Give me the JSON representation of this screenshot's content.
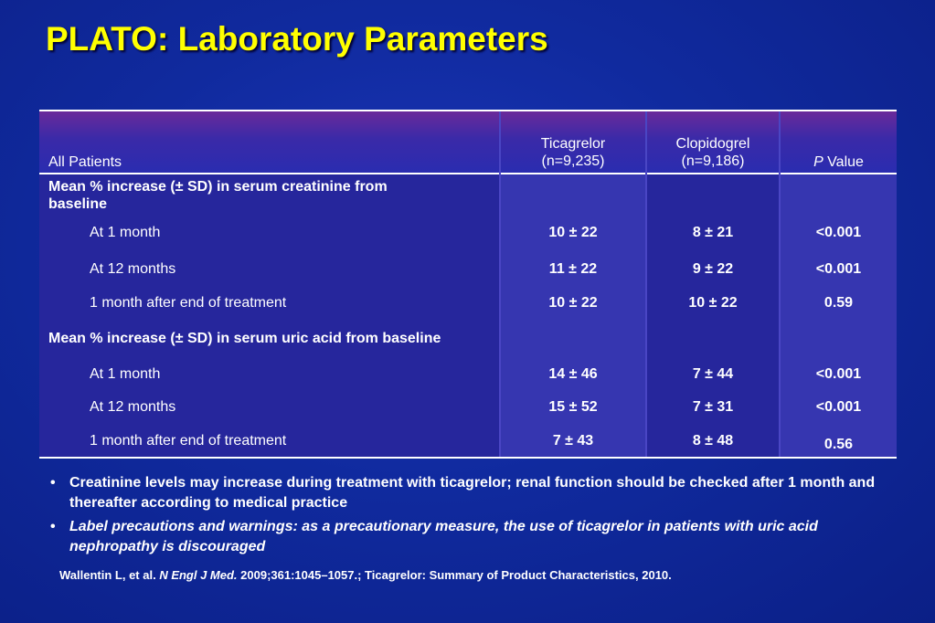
{
  "title": "PLATO: Laboratory Parameters",
  "table": {
    "header": {
      "col0": "All Patients",
      "col1_line1": "Ticagrelor",
      "col1_line2": "(n=9,235)",
      "col2_line1": "Clopidogrel",
      "col2_line2": "(n=9,186)",
      "col3_p": "P",
      "col3_rest": " Value"
    },
    "section1": {
      "label_line1": "Mean % increase (± SD) in serum creatinine from",
      "label_line2": "baseline",
      "rows": [
        {
          "label": "At 1 month",
          "ticagrelor": "10 ± 22",
          "clopidogrel": "8 ± 21",
          "p": "<0.001"
        },
        {
          "label": "At 12 months",
          "ticagrelor": "11 ± 22",
          "clopidogrel": "9 ± 22",
          "p": "<0.001"
        },
        {
          "label": "1 month after end of treatment",
          "ticagrelor": "10 ± 22",
          "clopidogrel": "10 ± 22",
          "p": "0.59"
        }
      ]
    },
    "section2": {
      "label": "Mean % increase (± SD) in serum uric acid from baseline",
      "rows": [
        {
          "label": "At 1 month",
          "ticagrelor": "14 ± 46",
          "clopidogrel": "7 ± 44",
          "p": "<0.001"
        },
        {
          "label": "At 12 months",
          "ticagrelor": "15 ± 52",
          "clopidogrel": "7 ± 31",
          "p": "<0.001"
        },
        {
          "label": "1 month after end of treatment",
          "ticagrelor": "7 ± 43",
          "clopidogrel": "8 ± 48",
          "p": "0.56"
        }
      ]
    }
  },
  "bullets": [
    {
      "text": "Creatinine levels may increase during treatment with ticagrelor; renal function should be checked after 1 month and thereafter according to medical practice"
    },
    {
      "text": "Label precautions and warnings: as a precautionary measure, the use of ticagrelor in patients with uric acid nephropathy is discouraged"
    }
  ],
  "bullet_marker": "•",
  "reference": {
    "authors": "Wallentin L, et al. ",
    "journal": "N Engl J Med.",
    "rest": " 2009;361:1045–1057.;  Ticagrelor: Summary of Product Characteristics, 2010."
  }
}
